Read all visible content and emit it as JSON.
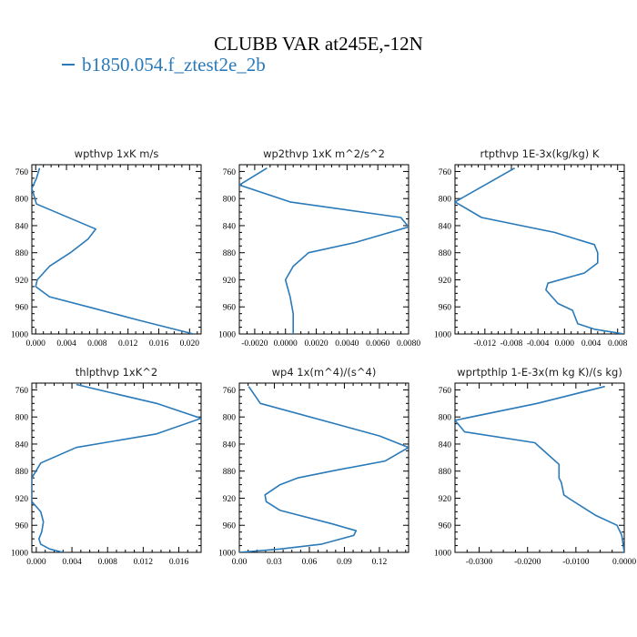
{
  "title": "CLUBB VAR at245E,-12N",
  "legend": {
    "label": "b1850.054.f_ztest2e_2b",
    "color": "#2a7ab9"
  },
  "chart_data": [
    {
      "type": "line",
      "title": "wpthvp  1xK m/s",
      "xlim": [
        -0.0005,
        0.0215
      ],
      "ylim": [
        1000,
        750
      ],
      "x_ticks": [
        0.0,
        0.004,
        0.008,
        0.012,
        0.016,
        0.02
      ],
      "x_tick_labels": [
        "0.000",
        "0.004",
        "0.008",
        "0.012",
        "0.016",
        "0.020"
      ],
      "y_ticks": [
        760,
        800,
        840,
        880,
        920,
        960,
        1000
      ],
      "series": [
        {
          "x": [
            0.0005,
            0.0001,
            -0.0005,
            0.0001,
            0.0078,
            0.0068,
            0.0045,
            0.0018,
            0.0002,
            0.0,
            0.0018,
            0.0075,
            0.0135,
            0.0205
          ],
          "y": [
            755,
            770,
            785,
            808,
            845,
            860,
            880,
            900,
            920,
            930,
            945,
            962,
            980,
            1000
          ]
        }
      ]
    },
    {
      "type": "line",
      "title": "wp2thvp  1xK m^2/s^2",
      "xlim": [
        -0.003,
        0.008
      ],
      "ylim": [
        1000,
        750
      ],
      "x_ticks": [
        -0.002,
        0.0,
        0.002,
        0.004,
        0.006,
        0.008
      ],
      "x_tick_labels": [
        "-0.0020",
        "0.0000",
        "0.0020",
        "0.0040",
        "0.0060",
        "0.0080"
      ],
      "y_ticks": [
        760,
        800,
        840,
        880,
        920,
        960,
        1000
      ],
      "series": [
        {
          "x": [
            -0.0012,
            -0.003,
            0.0003,
            0.0075,
            0.008,
            0.0045,
            0.0015,
            0.0005,
            0.0,
            0.0003,
            0.0005,
            0.0005
          ],
          "y": [
            755,
            780,
            805,
            828,
            842,
            865,
            880,
            900,
            920,
            945,
            970,
            1000
          ]
        }
      ]
    },
    {
      "type": "line",
      "title": "rtpthvp  1E-3x(kg/kg) K",
      "xlim": [
        -0.0165,
        0.009
      ],
      "ylim": [
        1000,
        750
      ],
      "x_ticks": [
        -0.012,
        -0.008,
        -0.004,
        0.0,
        0.004,
        0.008
      ],
      "x_tick_labels": [
        "-0.012",
        "-0.008",
        "-0.004",
        "0.000",
        "0.004",
        "0.008"
      ],
      "y_ticks": [
        760,
        800,
        840,
        880,
        920,
        960,
        1000
      ],
      "series": [
        {
          "x": [
            -0.0075,
            -0.012,
            -0.0165,
            -0.0125,
            -0.0015,
            0.0045,
            0.005,
            0.005,
            0.003,
            -0.0025,
            -0.0028,
            -0.001,
            0.0012,
            0.002,
            0.0045,
            0.009
          ],
          "y": [
            755,
            780,
            805,
            828,
            850,
            868,
            880,
            895,
            910,
            925,
            935,
            955,
            965,
            985,
            993,
            1000
          ]
        }
      ]
    },
    {
      "type": "line",
      "title": "thlpthvp  1xK^2",
      "xlim": [
        -0.0005,
        0.0185
      ],
      "ylim": [
        1000,
        750
      ],
      "x_ticks": [
        0.0,
        0.004,
        0.008,
        0.012,
        0.016
      ],
      "x_tick_labels": [
        "0.000",
        "0.004",
        "0.008",
        "0.012",
        "0.016"
      ],
      "y_ticks": [
        760,
        800,
        840,
        880,
        920,
        960,
        1000
      ],
      "series": [
        {
          "x": [
            0.0045,
            0.007,
            0.0135,
            0.0185,
            0.0135,
            0.0045,
            0.0005,
            -0.0005,
            -0.0005,
            -0.0005,
            0.0005,
            0.0008,
            0.0006,
            0.0003,
            0.0005,
            0.0015,
            0.003
          ],
          "y": [
            752,
            760,
            780,
            802,
            825,
            845,
            868,
            890,
            910,
            925,
            940,
            955,
            970,
            980,
            988,
            995,
            1000
          ]
        }
      ]
    },
    {
      "type": "line",
      "title": "wp4  1x(m^4)/(s^4)",
      "xlim": [
        0.0,
        0.145
      ],
      "ylim": [
        1000,
        750
      ],
      "x_ticks": [
        0.0,
        0.03,
        0.06,
        0.09,
        0.12
      ],
      "x_tick_labels": [
        "0.00",
        "0.03",
        "0.06",
        "0.09",
        "0.12"
      ],
      "y_ticks": [
        760,
        800,
        840,
        880,
        920,
        960,
        1000
      ],
      "series": [
        {
          "x": [
            0.008,
            0.018,
            0.12,
            0.145,
            0.125,
            0.085,
            0.05,
            0.035,
            0.022,
            0.023,
            0.035,
            0.08,
            0.1,
            0.098,
            0.07,
            0.035,
            0.0
          ],
          "y": [
            755,
            780,
            828,
            845,
            865,
            878,
            890,
            900,
            915,
            925,
            938,
            958,
            968,
            975,
            988,
            995,
            1000
          ]
        }
      ]
    },
    {
      "type": "line",
      "title": "wprtpthlp  1-E-3x(m kg K)/(s kg)",
      "xlim": [
        -0.035,
        0.0
      ],
      "ylim": [
        1000,
        750
      ],
      "x_ticks": [
        -0.03,
        -0.02,
        -0.01,
        0.0
      ],
      "x_tick_labels": [
        "-0.0300",
        "-0.0200",
        "-0.0100",
        "0.0000"
      ],
      "y_ticks": [
        760,
        800,
        840,
        880,
        920,
        960,
        1000
      ],
      "series": [
        {
          "x": [
            -0.004,
            -0.018,
            -0.035,
            -0.033,
            -0.0185,
            -0.0135,
            -0.0135,
            -0.013,
            -0.0125,
            -0.0115,
            -0.006,
            -0.0015,
            -0.0005,
            0.0
          ],
          "y": [
            755,
            780,
            805,
            822,
            838,
            870,
            890,
            897,
            915,
            920,
            945,
            960,
            975,
            1000
          ]
        }
      ]
    }
  ]
}
